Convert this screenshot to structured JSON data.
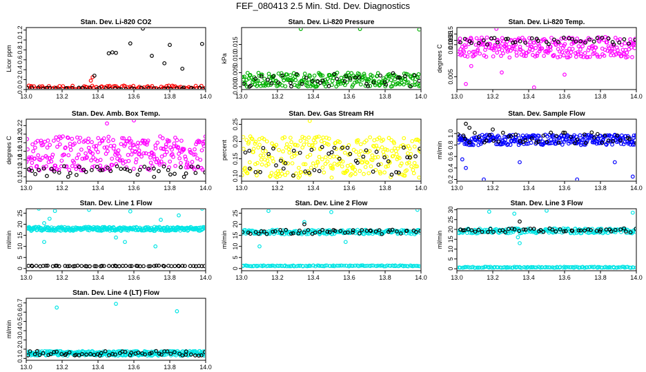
{
  "figure": {
    "title": "FEF_080413  2.5 Min. Std. Dev. Diagnostics"
  },
  "chart_data": [
    {
      "type": "scatter",
      "title": "Stan. Dev. Li-820 CO2",
      "ylabel": "Licor ppm",
      "xlim": [
        13.0,
        14.0
      ],
      "ylim": [
        0,
        1.25
      ],
      "xticks": [
        "13.0",
        "13.2",
        "13.4",
        "13.6",
        "13.8",
        "14.0"
      ],
      "yticks": [
        "0.0",
        "0.2",
        "0.4",
        "0.6",
        "0.8",
        "1.0",
        "1.2"
      ],
      "grid": false,
      "series": [
        {
          "color": "#ff0000",
          "band": [
            0.0,
            0.08
          ],
          "n": 110,
          "outliers": [
            [
              13.37,
              0.25
            ],
            [
              13.36,
              0.18
            ]
          ]
        },
        {
          "color": "#000000",
          "band": [
            0.0,
            0.04
          ],
          "n": 40,
          "outliers": [
            [
              13.38,
              0.28
            ],
            [
              13.46,
              0.73
            ],
            [
              13.48,
              0.75
            ],
            [
              13.5,
              0.74
            ],
            [
              13.58,
              0.93
            ],
            [
              13.65,
              1.23
            ],
            [
              13.7,
              0.68
            ],
            [
              13.77,
              0.53
            ],
            [
              13.8,
              0.9
            ],
            [
              13.87,
              0.42
            ],
            [
              13.98,
              0.92
            ]
          ]
        }
      ]
    },
    {
      "type": "scatter",
      "title": "Stan. Dev. Li-820 Pressure",
      "ylabel": "kPa",
      "xlim": [
        13.0,
        14.0
      ],
      "ylim": [
        -0.001,
        0.021
      ],
      "xticks": [
        "13.0",
        "13.2",
        "13.4",
        "13.6",
        "13.8",
        "14.0"
      ],
      "yticks": [
        "0.000",
        "0.005",
        "0.010",
        "0.015"
      ],
      "grid": false,
      "series": [
        {
          "color": "#00b000",
          "band": [
            0.0,
            0.005
          ],
          "n": 240,
          "outliers": [
            [
              13.33,
              0.0205
            ],
            [
              13.66,
              0.0205
            ],
            [
              13.99,
              0.0203
            ]
          ]
        },
        {
          "color": "#000000",
          "band": [
            0.0,
            0.005
          ],
          "n": 40,
          "outliers": []
        }
      ]
    },
    {
      "type": "scatter",
      "title": "Stan. Dev. Li-820 Temp.",
      "ylabel": "degrees C",
      "xlim": [
        13.0,
        14.0
      ],
      "ylim": [
        0.002,
        0.0165
      ],
      "xticks": [
        "13.0",
        "13.2",
        "13.4",
        "13.6",
        "13.8",
        "14.0"
      ],
      "yticks": [
        "0.005",
        "0.0125",
        "0.0135",
        "0.015"
      ],
      "grid": false,
      "series": [
        {
          "color": "#ff00ff",
          "band": [
            0.0095,
            0.0143
          ],
          "n": 270,
          "outliers": [
            [
              13.05,
              0.0033
            ],
            [
              13.08,
              0.0075
            ],
            [
              13.25,
              0.006
            ],
            [
              13.43,
              0.0025
            ],
            [
              13.22,
              0.0162
            ],
            [
              13.6,
              0.0055
            ]
          ]
        },
        {
          "color": "#000000",
          "band": [
            0.0125,
            0.0143
          ],
          "n": 40,
          "outliers": []
        }
      ]
    },
    {
      "type": "scatter",
      "title": "Stan. Dev. Amb. Box Temp.",
      "ylabel": "degrees C",
      "xlim": [
        13.0,
        14.0
      ],
      "ylim": [
        0.09,
        0.235
      ],
      "xticks": [
        "13.0",
        "13.2",
        "13.4",
        "13.6",
        "13.8",
        "14.0"
      ],
      "yticks": [
        "0.10",
        "0.12",
        "0.14",
        "0.16",
        "0.18",
        "0.20",
        "0.22"
      ],
      "grid": false,
      "series": [
        {
          "color": "#ff00ff",
          "band": [
            0.115,
            0.195
          ],
          "n": 290,
          "outliers": [
            [
              13.45,
              0.225
            ],
            [
              13.6,
              0.232
            ]
          ]
        },
        {
          "color": "#000000",
          "band": [
            0.1,
            0.125
          ],
          "n": 45,
          "outliers": []
        }
      ]
    },
    {
      "type": "scatter",
      "title": "Stan. Dev. Gas Stream RH",
      "ylabel": "percent",
      "xlim": [
        13.0,
        14.0
      ],
      "ylim": [
        0.085,
        0.265
      ],
      "xticks": [
        "13.0",
        "13.2",
        "13.4",
        "13.6",
        "13.8",
        "14.0"
      ],
      "yticks": [
        "0.10",
        "0.15",
        "0.20",
        "0.25"
      ],
      "grid": false,
      "series": [
        {
          "color": "#ffff00",
          "band": [
            0.095,
            0.215
          ],
          "n": 280,
          "outliers": [
            [
              13.38,
              0.26
            ]
          ]
        },
        {
          "color": "#000000",
          "band": [
            0.1,
            0.185
          ],
          "n": 45,
          "outliers": []
        }
      ]
    },
    {
      "type": "scatter",
      "title": "Stan. Dev. Sample Flow",
      "ylabel": "ml/min",
      "xlim": [
        13.0,
        14.0
      ],
      "ylim": [
        0.17,
        1.25
      ],
      "xticks": [
        "13.0",
        "13.2",
        "13.4",
        "13.6",
        "13.8",
        "14.0"
      ],
      "yticks": [
        "0.2",
        "0.4",
        "0.6",
        "0.8",
        "1.0"
      ],
      "grid": false,
      "series": [
        {
          "color": "#0000ff",
          "band": [
            0.8,
            0.98
          ],
          "n": 280,
          "outliers": [
            [
              13.03,
              0.55
            ],
            [
              13.05,
              0.4
            ],
            [
              13.15,
              0.2
            ],
            [
              13.35,
              0.5
            ],
            [
              13.67,
              0.2
            ],
            [
              13.88,
              0.5
            ],
            [
              13.98,
              0.25
            ]
          ]
        },
        {
          "color": "#000000",
          "band": [
            0.82,
            1.02
          ],
          "n": 45,
          "outliers": [
            [
              13.05,
              1.17
            ],
            [
              13.07,
              1.1
            ],
            [
              13.2,
              1.07
            ]
          ]
        }
      ]
    },
    {
      "type": "scatter",
      "title": "Stan. Dev. Line 1 Flow",
      "ylabel": "ml/min",
      "xlim": [
        13.0,
        14.0
      ],
      "ylim": [
        -1,
        27
      ],
      "xticks": [
        "13.0",
        "13.2",
        "13.4",
        "13.6",
        "13.8",
        "14.0"
      ],
      "yticks": [
        "0",
        "5",
        "10",
        "15",
        "20",
        "25"
      ],
      "grid": false,
      "series": [
        {
          "color": "#00e5e5",
          "band": [
            17.0,
            18.8
          ],
          "n": 300,
          "outliers": [
            [
              13.07,
              27.0
            ],
            [
              13.1,
              20.5
            ],
            [
              13.13,
              22.5
            ],
            [
              13.1,
              12.0
            ],
            [
              13.16,
              26.0
            ],
            [
              13.35,
              26.5
            ],
            [
              13.5,
              14.0
            ],
            [
              13.55,
              12.0
            ],
            [
              13.58,
              25.8
            ],
            [
              13.72,
              10.0
            ],
            [
              13.75,
              22.0
            ],
            [
              13.85,
              24.0
            ],
            [
              13.98,
              27.0
            ]
          ]
        },
        {
          "color": "#000000",
          "band": [
            1.0,
            1.3
          ],
          "n": 60,
          "outliers": []
        }
      ]
    },
    {
      "type": "scatter",
      "title": "Stan. Dev. Line 2 Flow",
      "ylabel": "ml/min",
      "xlim": [
        13.0,
        14.0
      ],
      "ylim": [
        -1,
        27
      ],
      "xticks": [
        "13.0",
        "13.2",
        "13.4",
        "13.6",
        "13.8",
        "14.0"
      ],
      "yticks": [
        "0",
        "5",
        "10",
        "15",
        "20",
        "25"
      ],
      "grid": false,
      "series": [
        {
          "color": "#00e5e5",
          "band": [
            15.5,
            17.5
          ],
          "n": 200,
          "outliers": [
            [
              13.1,
              10.0
            ],
            [
              13.15,
              26.0
            ],
            [
              13.35,
              21.0
            ],
            [
              13.5,
              25.5
            ],
            [
              13.58,
              12.0
            ],
            [
              13.98,
              26.5
            ]
          ]
        },
        {
          "color": "#00e5e5",
          "band": [
            1.0,
            1.4
          ],
          "n": 120,
          "outliers": []
        },
        {
          "color": "#000000",
          "band": [
            15.5,
            17.5
          ],
          "n": 50,
          "outliers": [
            [
              13.35,
              20.0
            ]
          ]
        }
      ]
    },
    {
      "type": "scatter",
      "title": "Stan. Dev. Line 3 Flow",
      "ylabel": "ml/min",
      "xlim": [
        13.0,
        14.0
      ],
      "ylim": [
        -1,
        30.5
      ],
      "xticks": [
        "13.0",
        "13.2",
        "13.4",
        "13.6",
        "13.8",
        "14.0"
      ],
      "yticks": [
        "0",
        "5",
        "10",
        "15",
        "20",
        "25",
        "30"
      ],
      "grid": false,
      "series": [
        {
          "color": "#00e5e5",
          "band": [
            18.0,
            20.5
          ],
          "n": 200,
          "outliers": [
            [
              13.18,
              29.0
            ],
            [
              13.32,
              28.0
            ],
            [
              13.34,
              16.0
            ],
            [
              13.35,
              13.0
            ],
            [
              13.5,
              29.5
            ],
            [
              13.98,
              28.5
            ]
          ]
        },
        {
          "color": "#00e5e5",
          "band": [
            0.5,
            1.0
          ],
          "n": 120,
          "outliers": []
        },
        {
          "color": "#000000",
          "band": [
            18.5,
            20.5
          ],
          "n": 50,
          "outliers": [
            [
              13.35,
              24.0
            ]
          ]
        }
      ]
    },
    {
      "type": "scatter",
      "title": "Stan. Dev. Line 4 (LT) Flow",
      "ylabel": "ml/min",
      "xlim": [
        13.0,
        14.0
      ],
      "ylim": [
        0.08,
        0.75
      ],
      "xticks": [
        "13.0",
        "13.2",
        "13.4",
        "13.6",
        "13.8",
        "14.0"
      ],
      "yticks": [
        "0.1",
        "0.2",
        "0.3",
        "0.4",
        "0.5",
        "0.6",
        "0.7"
      ],
      "grid": false,
      "series": [
        {
          "color": "#00e5e5",
          "band": [
            0.13,
            0.18
          ],
          "n": 300,
          "outliers": [
            [
              13.17,
              0.65
            ],
            [
              13.5,
              0.69
            ],
            [
              13.84,
              0.61
            ]
          ]
        },
        {
          "color": "#000000",
          "band": [
            0.13,
            0.18
          ],
          "n": 55,
          "outliers": []
        }
      ]
    }
  ]
}
